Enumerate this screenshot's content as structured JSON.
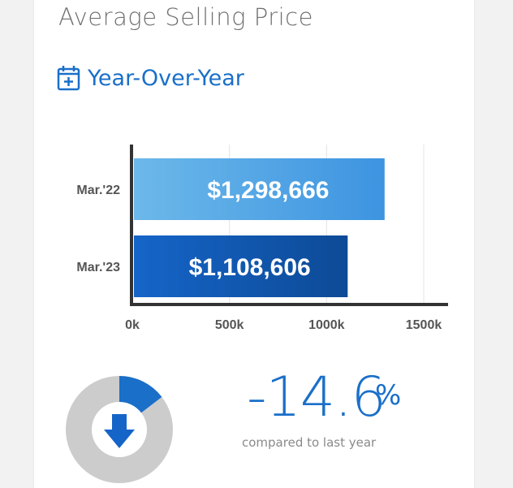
{
  "header": {
    "title": "Average Selling Price",
    "subtitle": "Year-Over-Year",
    "subtitle_icon": "calendar-plus-icon"
  },
  "chart_data": {
    "type": "bar",
    "orientation": "horizontal",
    "categories": [
      "Mar.'22",
      "Mar.'23"
    ],
    "values": [
      1298666,
      1108606
    ],
    "data_labels": [
      "$1,298,666",
      "$1,108,606"
    ],
    "x_ticks": [
      "0k",
      "500k",
      "1000k",
      "1500k"
    ],
    "xlim": [
      0,
      1500000
    ],
    "grid": true,
    "bar_colors": [
      [
        "#6cb8ea",
        "#3d94e0"
      ],
      [
        "#1565c8",
        "#0d4a96"
      ]
    ]
  },
  "summary": {
    "change_value": "-14.6",
    "change_unit": "%",
    "change_caption": "compared to last year",
    "change_fraction": 0.146,
    "direction_icon": "arrow-down-icon",
    "colors": {
      "accent": "#1a6fc9",
      "track": "#cccccc",
      "arrow": "#1565c8"
    }
  }
}
